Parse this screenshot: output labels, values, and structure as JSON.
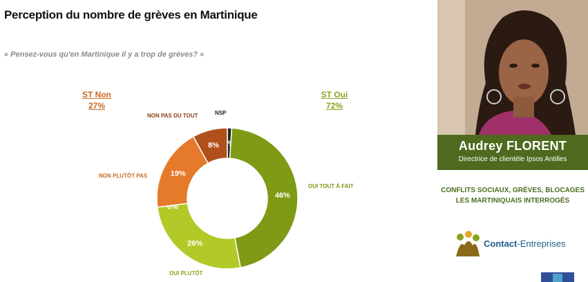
{
  "title": "Perception du nombre de grèves en Martinique",
  "question": "« Pensez-vous qu'en Martinique il y a trop de grèves? »",
  "st_non": {
    "label": "ST Non",
    "value": "27%"
  },
  "st_oui": {
    "label": "ST Oui",
    "value": "72%"
  },
  "presenter": {
    "name": "Audrey FLORENT",
    "role": "Directrice de clientèle Ipsos Antilles"
  },
  "headline": {
    "line1": "CONFLITS SOCIAUX, GRÈVES, BLOCAGES",
    "line2": "LES MARTINIQUAIS INTERROGÉS"
  },
  "logo": {
    "part1": "Contact",
    "part2": "-Entreprises"
  },
  "colors": {
    "oui_tout_a_fait": "#7f9a14",
    "oui_plutot": "#b2c928",
    "non_plutot_pas": "#e57a2a",
    "non_pas_du_tout": "#b0501a",
    "nsp": "#222222",
    "name_bar": "#4f6a1e"
  },
  "chart_data": {
    "type": "pie",
    "donut": true,
    "title": "Perception du nombre de grèves en Martinique",
    "slices": [
      {
        "label": "NSP",
        "value": 1,
        "display": "1%",
        "color": "#222222"
      },
      {
        "label": "OUI TOUT À FAIT",
        "value": 46,
        "display": "46%",
        "color": "#7f9a14"
      },
      {
        "label": "OUI PLUTÔT",
        "value": 26,
        "display": "26%",
        "color": "#b2c928"
      },
      {
        "label": "",
        "value": 0,
        "display": "0%",
        "color": "#b2c928"
      },
      {
        "label": "NON PLUTÔT PAS",
        "value": 19,
        "display": "19%",
        "color": "#e57a2a"
      },
      {
        "label": "NON PAS DU TOUT",
        "value": 8,
        "display": "8%",
        "color": "#b0501a"
      }
    ]
  }
}
